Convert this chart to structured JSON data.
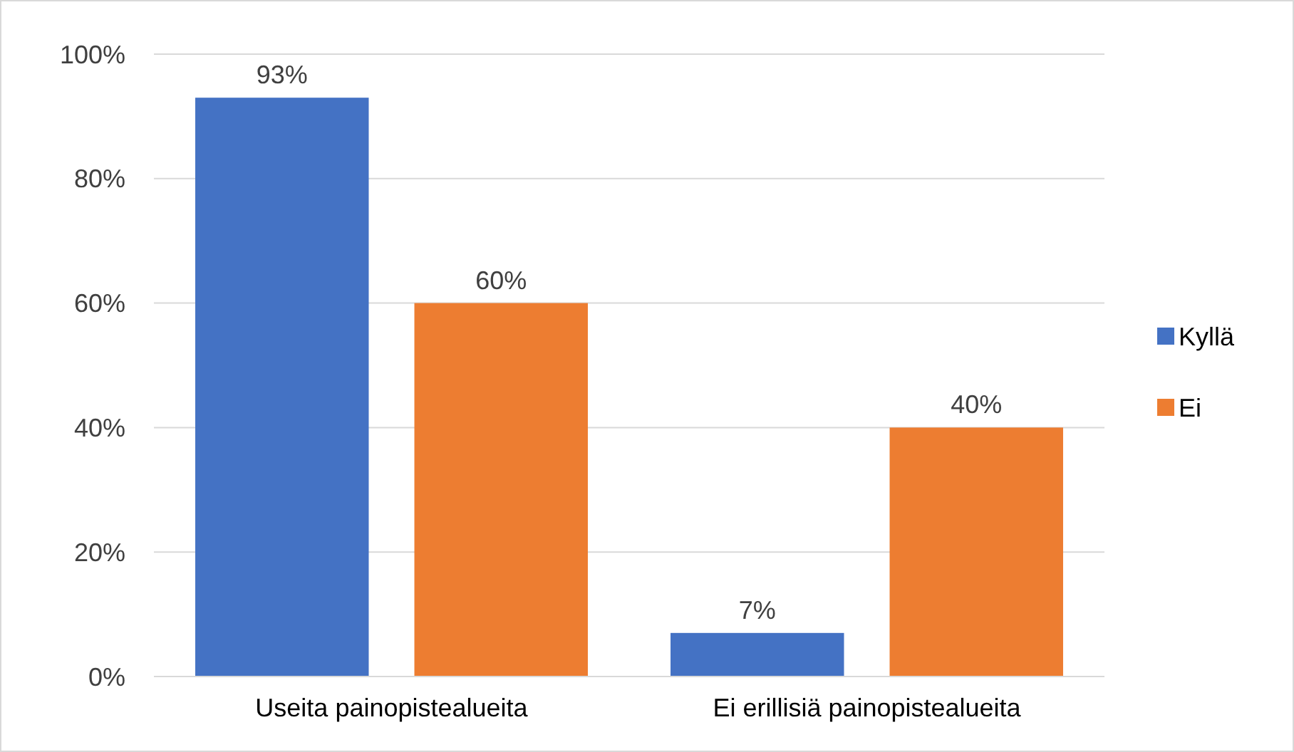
{
  "chart_data": {
    "type": "bar",
    "categories": [
      "Useita painopistealueita",
      "Ei erillisiä painopistealueita"
    ],
    "series": [
      {
        "name": "Kyllä",
        "color": "#4472c4",
        "values": [
          93,
          7
        ],
        "value_labels": [
          "93%",
          "7%"
        ]
      },
      {
        "name": "Ei",
        "color": "#ed7d31",
        "values": [
          60,
          40
        ],
        "value_labels": [
          "60%",
          "40%"
        ]
      }
    ],
    "ylim": [
      0,
      100
    ],
    "yticks": [
      {
        "value": 0,
        "label": "0%"
      },
      {
        "value": 20,
        "label": "20%"
      },
      {
        "value": 40,
        "label": "40%"
      },
      {
        "value": 60,
        "label": "60%"
      },
      {
        "value": 80,
        "label": "80%"
      },
      {
        "value": 100,
        "label": "100%"
      }
    ],
    "grid": "y",
    "legend": "right"
  }
}
